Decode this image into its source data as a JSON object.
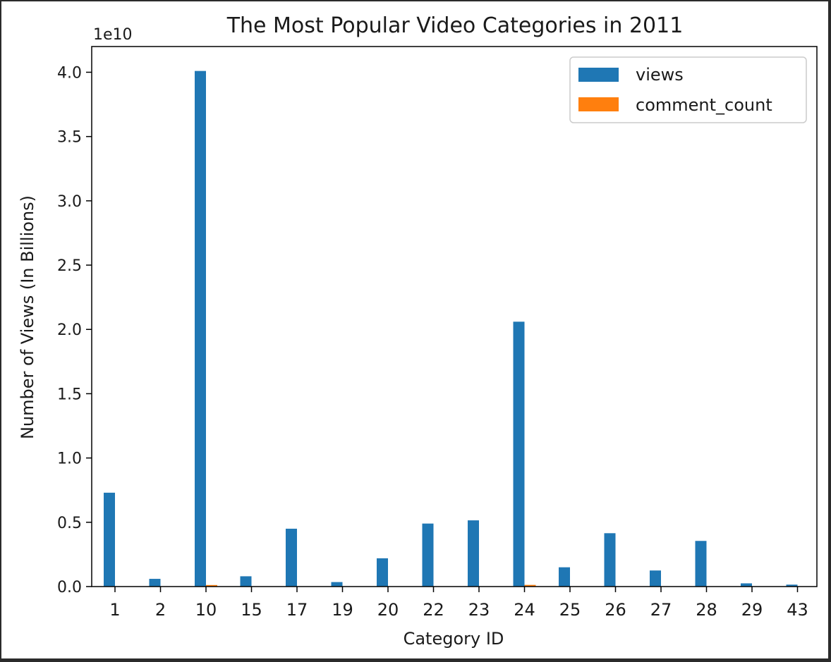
{
  "chart_data": {
    "type": "bar",
    "title": "The Most Popular Video Categories in 2011",
    "xlabel": "Category ID",
    "ylabel": "Number of Views (In Billions)",
    "y_offset_label": "1e10",
    "categories": [
      "1",
      "2",
      "10",
      "15",
      "17",
      "19",
      "20",
      "22",
      "23",
      "24",
      "25",
      "26",
      "27",
      "28",
      "29",
      "43"
    ],
    "series": [
      {
        "name": "views",
        "color": "#1f77b4",
        "values": [
          7300000000,
          600000000,
          40100000000,
          800000000,
          4500000000,
          350000000,
          2200000000,
          4900000000,
          5150000000,
          20600000000,
          1500000000,
          4150000000,
          1250000000,
          3550000000,
          250000000,
          150000000
        ]
      },
      {
        "name": "comment_count",
        "color": "#ff7f0e",
        "values": [
          5000000,
          500000,
          120000000,
          1000000,
          8000000,
          300000,
          4000000,
          6000000,
          10000000,
          130000000,
          3000000,
          7000000,
          2000000,
          5000000,
          400000,
          100000
        ]
      }
    ],
    "ylim": [
      0,
      42000000000
    ],
    "yticks": [
      0,
      5000000000,
      10000000000,
      15000000000,
      20000000000,
      25000000000,
      30000000000,
      35000000000,
      40000000000
    ],
    "ytick_labels": [
      "0.0",
      "0.5",
      "1.0",
      "1.5",
      "2.0",
      "2.5",
      "3.0",
      "3.5",
      "4.0"
    ],
    "legend_position": "top-right",
    "grid": false
  }
}
